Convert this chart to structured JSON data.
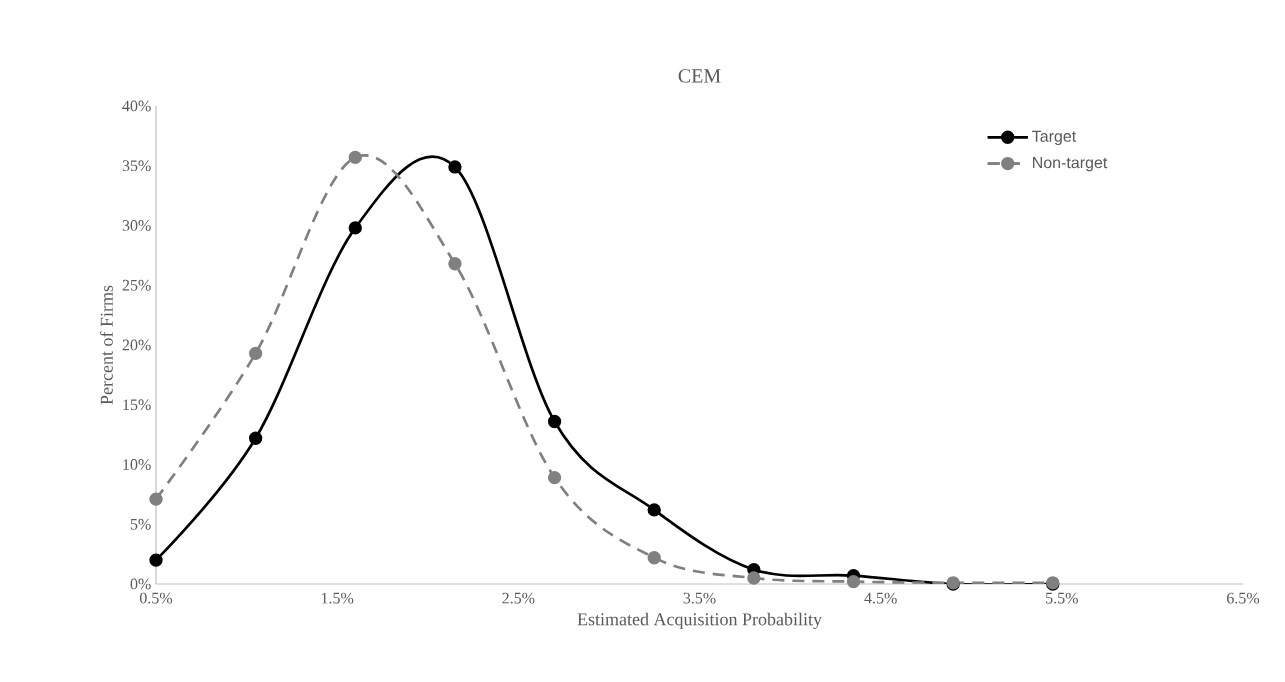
{
  "chart_data": {
    "type": "line",
    "title": "CEM",
    "xlabel": "Estimated Acquisition Probability",
    "ylabel": "Percent of Firms",
    "x": [
      0.5,
      1.05,
      1.6,
      2.15,
      2.7,
      3.25,
      3.8,
      4.35,
      4.9,
      5.45
    ],
    "series": [
      {
        "name": "Target",
        "color": "#000000",
        "line_style": "solid",
        "values": [
          2.0,
          12.2,
          29.8,
          34.9,
          13.6,
          6.2,
          1.2,
          0.7,
          0,
          0
        ]
      },
      {
        "name": "Non-target",
        "color": "#808080",
        "line_style": "dashed",
        "values": [
          7.1,
          19.3,
          35.7,
          26.8,
          8.9,
          2.2,
          0.5,
          0.2,
          0.1,
          0.1
        ]
      }
    ],
    "xlim": [
      0.5,
      6.5
    ],
    "xticks": [
      {
        "value": 0.5,
        "label": "0.5%"
      },
      {
        "value": 1.5,
        "label": "1.5%"
      },
      {
        "value": 2.5,
        "label": "2.5%"
      },
      {
        "value": 3.5,
        "label": "3.5%"
      },
      {
        "value": 4.5,
        "label": "4.5%"
      },
      {
        "value": 5.5,
        "label": "5.5%"
      },
      {
        "value": 6.5,
        "label": "6.5%"
      }
    ],
    "ylim": [
      0,
      40
    ],
    "yticks": [
      {
        "value": 0,
        "label": "0%"
      },
      {
        "value": 5,
        "label": "5%"
      },
      {
        "value": 10,
        "label": "10%"
      },
      {
        "value": 15,
        "label": "15%"
      },
      {
        "value": 20,
        "label": "20%"
      },
      {
        "value": 25,
        "label": "25%"
      },
      {
        "value": 30,
        "label": "30%"
      },
      {
        "value": 35,
        "label": "35%"
      },
      {
        "value": 40,
        "label": "40%"
      }
    ],
    "grid": false,
    "legend": "top right",
    "marker": "circle"
  }
}
